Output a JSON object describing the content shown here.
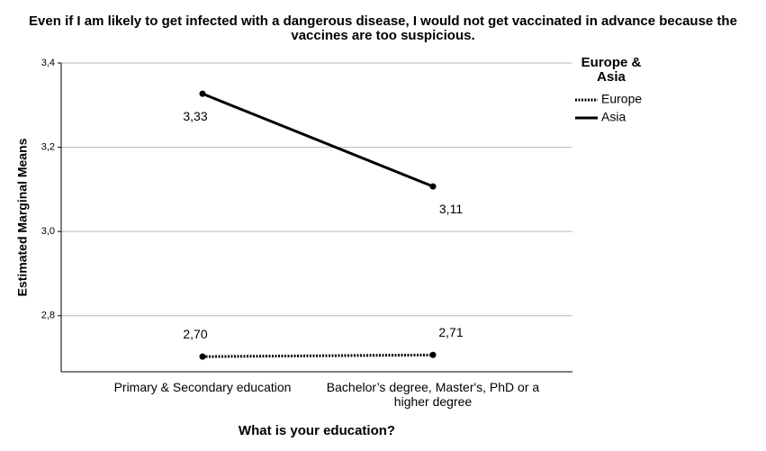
{
  "chart_data": {
    "type": "line",
    "title": "Even if I am likely to get infected with a dangerous disease, I would not get vaccinated in advance because the vaccines are too suspicious.",
    "x_label": "What is your education?",
    "y_label": "Estimated Marginal Means",
    "categories": [
      "Primary & Secondary education",
      "Bachelor’s degree, Master's, PhD or a higher degree"
    ],
    "series": [
      {
        "name": "Europe",
        "color": "#000000",
        "dash": "dotted",
        "values": [
          2.703,
          2.707
        ],
        "value_labels": [
          "2,70",
          "2,71"
        ]
      },
      {
        "name": "Asia",
        "color": "#000000",
        "dash": "solid",
        "values": [
          3.327,
          3.107
        ],
        "value_labels": [
          "3,33",
          "3,11"
        ]
      }
    ],
    "legend_title": "Europe & Asia",
    "legend_position": "right",
    "ylim": [
      2.667,
      3.4
    ],
    "yticks": [
      {
        "value": 2.8,
        "label": "2,8"
      },
      {
        "value": 3.0,
        "label": "3,0"
      },
      {
        "value": 3.2,
        "label": "3,2"
      },
      {
        "value": 3.4,
        "label": "3,4"
      }
    ],
    "grid": true
  }
}
